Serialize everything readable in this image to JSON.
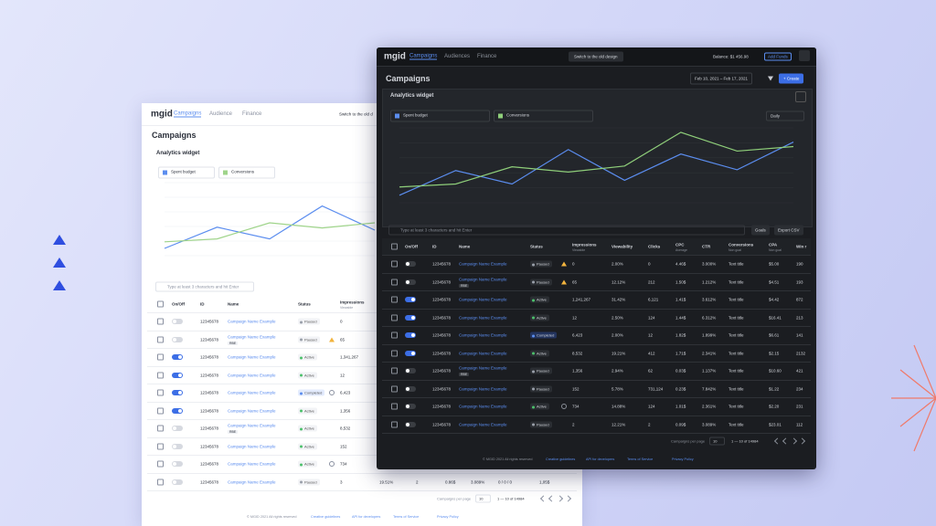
{
  "light_window": {
    "logo": "mgid",
    "nav": [
      "Campaigns",
      "Audience",
      "Finance"
    ],
    "switch_button": "Switch to the old d",
    "title": "Campaigns",
    "widget_title": "Analytics widget",
    "selects": [
      "Spent budget",
      "Conversions"
    ],
    "chart": {
      "type": "line",
      "ylim": [
        0,
        100
      ],
      "series": [
        {
          "name": "Spent budget",
          "color": "#5b8def",
          "values": [
            10,
            39,
            23,
            68,
            35
          ]
        },
        {
          "name": "Conversions",
          "color": "#9fd48a",
          "values": [
            19,
            23,
            45,
            38,
            45
          ]
        }
      ]
    },
    "search_placeholder": "Type at least 3 characters and hit Enter",
    "columns": [
      {
        "label": "On/Off"
      },
      {
        "label": "ID"
      },
      {
        "label": "Name"
      },
      {
        "label": "Status"
      },
      {
        "label": "Impressions",
        "note": "Viewable"
      }
    ],
    "rows": [
      {
        "on": false,
        "id": "12345678",
        "name": "Campaign Name Example",
        "status": "Paused",
        "cells": [
          "0"
        ]
      },
      {
        "on": false,
        "id": "12345678",
        "name": "Campaign Name Example",
        "tag": "RBE",
        "status": "Paused",
        "icon": "warning",
        "cells": [
          "65"
        ]
      },
      {
        "on": true,
        "id": "12345678",
        "name": "Campaign Name Example",
        "status": "Active",
        "cells": [
          "1,341,267"
        ]
      },
      {
        "on": true,
        "id": "12345678",
        "name": "Campaign Name Example",
        "status": "Active",
        "cells": [
          "12"
        ]
      },
      {
        "on": true,
        "id": "12345678",
        "name": "Campaign Name Example",
        "status": "Completed",
        "icon": "info",
        "cells": [
          "6,423"
        ]
      },
      {
        "on": true,
        "id": "12345678",
        "name": "Campaign Name Example",
        "status": "Active",
        "cells": [
          "1,356"
        ]
      },
      {
        "on": false,
        "id": "12345678",
        "name": "Campaign Name Example",
        "tag": "RBE",
        "status": "Active",
        "cells": [
          "8,532"
        ]
      },
      {
        "on": false,
        "id": "12345678",
        "name": "Campaign Name Example",
        "status": "Active",
        "cells": [
          "152"
        ]
      },
      {
        "on": false,
        "id": "12345678",
        "name": "Campaign Name Example",
        "status": "Active",
        "icon": "info",
        "cells": [
          "734"
        ]
      },
      {
        "on": false,
        "id": "12345678",
        "name": "Campaign Name Example",
        "status": "Paused",
        "cells": [
          "3",
          "19.51%",
          "2",
          "0.86$",
          "3.089%",
          "0 / 0 / 0",
          "1,05$"
        ]
      }
    ],
    "pagination": {
      "label": "Campaigns per page",
      "per_page": "10",
      "range": "1 — 10 of 14984"
    },
    "footer": [
      "© MGID 2021 All rights reserved",
      "Creative guidelines",
      "API for developers",
      "Terms of Service",
      "Privacy Policy"
    ]
  },
  "dark_window": {
    "logo": "mgid",
    "nav": [
      "Campaigns",
      "Audiences",
      "Finance"
    ],
    "switch_button": "Switch to the old design",
    "balance": "Balance: $1 456.98",
    "add_funds": "Add Funds",
    "title": "Campaigns",
    "date_range": "Feb 10, 2021 – Feb 17, 2021",
    "create": "+ Create",
    "widget_title": "Analytics widget",
    "selects": [
      "Spent budget",
      "Conversions"
    ],
    "period": "Daily",
    "chart": {
      "type": "line",
      "ylim": [
        0,
        100
      ],
      "series": [
        {
          "name": "Spent budget",
          "color": "#5b8def",
          "values": [
            10,
            43,
            25,
            71,
            30,
            65,
            44,
            81
          ]
        },
        {
          "name": "Conversions",
          "color": "#8fcf7a",
          "values": [
            21,
            25,
            48,
            41,
            49,
            94,
            69,
            75
          ]
        }
      ]
    },
    "search_placeholder": "Type at least 3 characters and hit Enter",
    "buttons": [
      "Goals",
      "Export CSV"
    ],
    "columns": [
      {
        "label": "On/Off"
      },
      {
        "label": "ID"
      },
      {
        "label": "Name"
      },
      {
        "label": "Status"
      },
      {
        "label": "Impressions",
        "note": "Viewable"
      },
      {
        "label": "Viewability"
      },
      {
        "label": "Clicks"
      },
      {
        "label": "CPC",
        "note": "Average"
      },
      {
        "label": "CTR"
      },
      {
        "label": "Conversions",
        "note": "Non goal"
      },
      {
        "label": "CPA",
        "note": "Non goal"
      },
      {
        "label": "Win r"
      }
    ],
    "rows": [
      {
        "on": false,
        "id": "12345678",
        "name": "Campaign Name Example",
        "status": "Paused",
        "icon": "warning",
        "cells": [
          "0",
          "2.00%",
          "0",
          "4.46$",
          "3.000%",
          "Text title",
          "$5.00",
          "190"
        ]
      },
      {
        "on": false,
        "id": "12345678",
        "name": "Campaign Name Example",
        "tag": "RBE",
        "status": "Paused",
        "icon": "warning",
        "cells": [
          "65",
          "12.12%",
          "212",
          "1.50$",
          "1.212%",
          "Text title",
          "$4.51",
          "193"
        ]
      },
      {
        "on": true,
        "id": "12345678",
        "name": "Campaign Name Example",
        "status": "Active",
        "cells": [
          "1,241,267",
          "31.42%",
          "6,121",
          "1.41$",
          "3.612%",
          "Text title",
          "$4.42",
          "872"
        ]
      },
      {
        "on": true,
        "id": "12345678",
        "name": "Campaign Name Example",
        "status": "Active",
        "cells": [
          "12",
          "2.50%",
          "124",
          "1.44$",
          "6.312%",
          "Text title",
          "$16.41",
          "213"
        ]
      },
      {
        "on": true,
        "id": "12345678",
        "name": "Campaign Name Example",
        "status": "Completed",
        "cells": [
          "6,423",
          "2.00%",
          "12",
          "1.82$",
          "1.899%",
          "Text title",
          "$6.61",
          "141"
        ]
      },
      {
        "on": true,
        "id": "12345678",
        "name": "Campaign Name Example",
        "status": "Active",
        "cells": [
          "8,532",
          "19.21%",
          "412",
          "1.71$",
          "2.341%",
          "Text title",
          "$2.15",
          "2132"
        ]
      },
      {
        "on": false,
        "id": "12345678",
        "name": "Campaign Name Example",
        "tag": "RBE",
        "status": "Paused",
        "cells": [
          "1,356",
          "2.94%",
          "62",
          "0.03$",
          "1.137%",
          "Text title",
          "$10.60",
          "421"
        ]
      },
      {
        "on": false,
        "id": "12345678",
        "name": "Campaign Name Example",
        "status": "Paused",
        "cells": [
          "152",
          "5.78%",
          "731,124",
          "0.23$",
          "7.842%",
          "Text title",
          "$1.22",
          "234"
        ]
      },
      {
        "on": false,
        "id": "12345678",
        "name": "Campaign Name Example",
        "status": "Active",
        "icon": "info",
        "cells": [
          "734",
          "14.88%",
          "124",
          "1.01$",
          "2.361%",
          "Text title",
          "$2.20",
          "231"
        ]
      },
      {
        "on": false,
        "id": "12345678",
        "name": "Campaign Name Example",
        "status": "Paused",
        "cells": [
          "2",
          "12.21%",
          "2",
          "0.09$",
          "3.089%",
          "Text title",
          "$23.01",
          "112"
        ]
      }
    ],
    "pagination": {
      "label": "Campaigns per page",
      "per_page": "10",
      "range": "1 — 10 of 14984"
    },
    "footer": [
      "© MGID 2021 All rights reserved",
      "Creative guidelines",
      "API for developers",
      "Terms of Service",
      "Privacy Policy"
    ]
  }
}
